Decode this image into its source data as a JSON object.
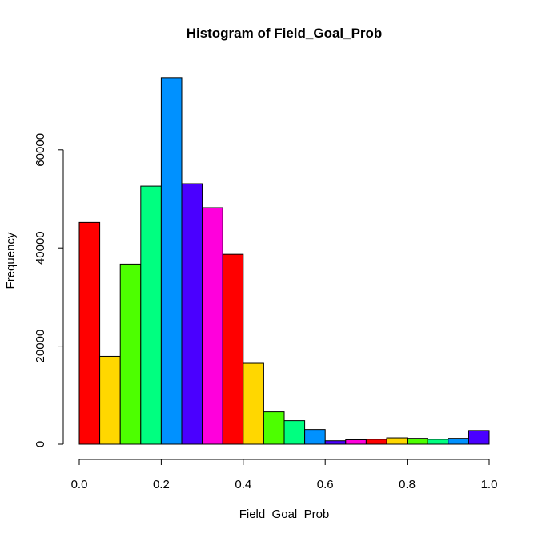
{
  "chart_data": {
    "type": "bar",
    "title": "Histogram of Field_Goal_Prob",
    "xlabel": "Field_Goal_Prob",
    "ylabel": "Frequency",
    "xlim": [
      0.0,
      1.0
    ],
    "ylim": [
      0,
      75000
    ],
    "x_ticks": [
      "0.0",
      "0.2",
      "0.4",
      "0.6",
      "0.8",
      "1.0"
    ],
    "y_ticks": [
      "0",
      "20000",
      "40000",
      "60000"
    ],
    "bins": [
      {
        "start": 0.0,
        "end": 0.05,
        "count": 45200,
        "color": "#FF0000"
      },
      {
        "start": 0.05,
        "end": 0.1,
        "count": 17900,
        "color": "#FFD700"
      },
      {
        "start": 0.1,
        "end": 0.15,
        "count": 36700,
        "color": "#4DFF00"
      },
      {
        "start": 0.15,
        "end": 0.2,
        "count": 52600,
        "color": "#00FF80"
      },
      {
        "start": 0.2,
        "end": 0.25,
        "count": 74700,
        "color": "#0091FF"
      },
      {
        "start": 0.25,
        "end": 0.3,
        "count": 53100,
        "color": "#4A00FF"
      },
      {
        "start": 0.3,
        "end": 0.35,
        "count": 48200,
        "color": "#FF00DC"
      },
      {
        "start": 0.35,
        "end": 0.4,
        "count": 38700,
        "color": "#FF0000"
      },
      {
        "start": 0.4,
        "end": 0.45,
        "count": 16500,
        "color": "#FFD700"
      },
      {
        "start": 0.45,
        "end": 0.5,
        "count": 6600,
        "color": "#4DFF00"
      },
      {
        "start": 0.5,
        "end": 0.55,
        "count": 4800,
        "color": "#00FF80"
      },
      {
        "start": 0.55,
        "end": 0.6,
        "count": 3000,
        "color": "#0091FF"
      },
      {
        "start": 0.6,
        "end": 0.65,
        "count": 700,
        "color": "#4A00FF"
      },
      {
        "start": 0.65,
        "end": 0.7,
        "count": 900,
        "color": "#FF00DC"
      },
      {
        "start": 0.7,
        "end": 0.75,
        "count": 1000,
        "color": "#FF0000"
      },
      {
        "start": 0.75,
        "end": 0.8,
        "count": 1300,
        "color": "#FFD700"
      },
      {
        "start": 0.8,
        "end": 0.85,
        "count": 1200,
        "color": "#4DFF00"
      },
      {
        "start": 0.85,
        "end": 0.9,
        "count": 1000,
        "color": "#00FF80"
      },
      {
        "start": 0.9,
        "end": 0.95,
        "count": 1200,
        "color": "#0091FF"
      },
      {
        "start": 0.95,
        "end": 1.0,
        "count": 2800,
        "color": "#4A00FF"
      }
    ]
  }
}
